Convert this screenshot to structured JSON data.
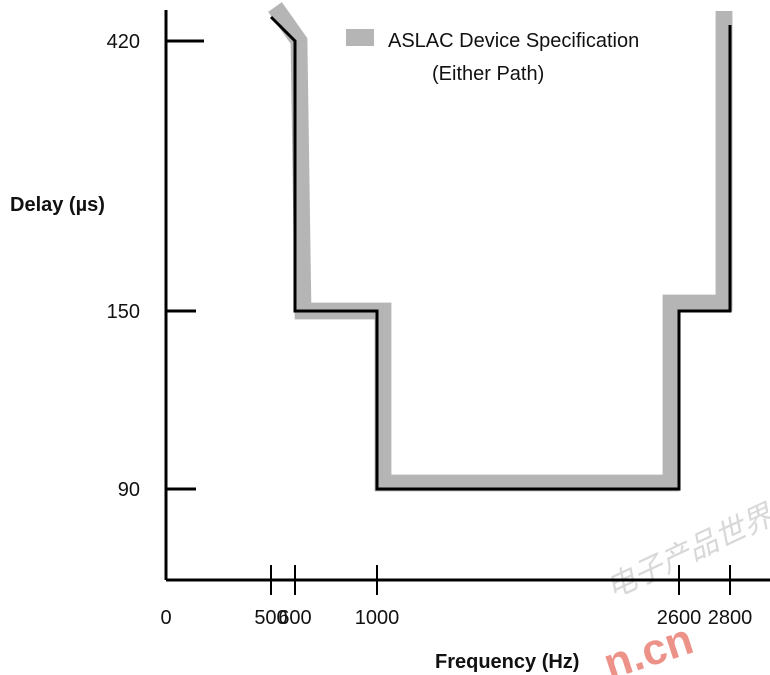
{
  "chart_data": {
    "type": "line",
    "title": "",
    "xlabel": "Frequency (Hz)",
    "ylabel": "Delay (µs)",
    "x_ticks": [
      0,
      500,
      600,
      1000,
      2600,
      2800
    ],
    "y_ticks": [
      90,
      150,
      420
    ],
    "legend": {
      "label_line1": "ASLAC Device Specification",
      "label_line2": "(Either Path)",
      "position": "top-right"
    },
    "mask_series": {
      "name": "ASLAC Device Specification (Either Path)",
      "points": [
        {
          "x": 500,
          "y": 420
        },
        {
          "x": 600,
          "y": 420
        },
        {
          "x": 600,
          "y": 150
        },
        {
          "x": 1000,
          "y": 150
        },
        {
          "x": 1000,
          "y": 90
        },
        {
          "x": 2600,
          "y": 90
        },
        {
          "x": 2600,
          "y": 150
        },
        {
          "x": 2800,
          "y": 150
        },
        {
          "x": 2800,
          "y": 420
        }
      ]
    },
    "colors": {
      "mask": "#b5b5b5",
      "line": "#000000",
      "watermark": "#e03a2a"
    }
  },
  "watermark": {
    "text": "n.cn",
    "chinese": "电子产品世界"
  }
}
